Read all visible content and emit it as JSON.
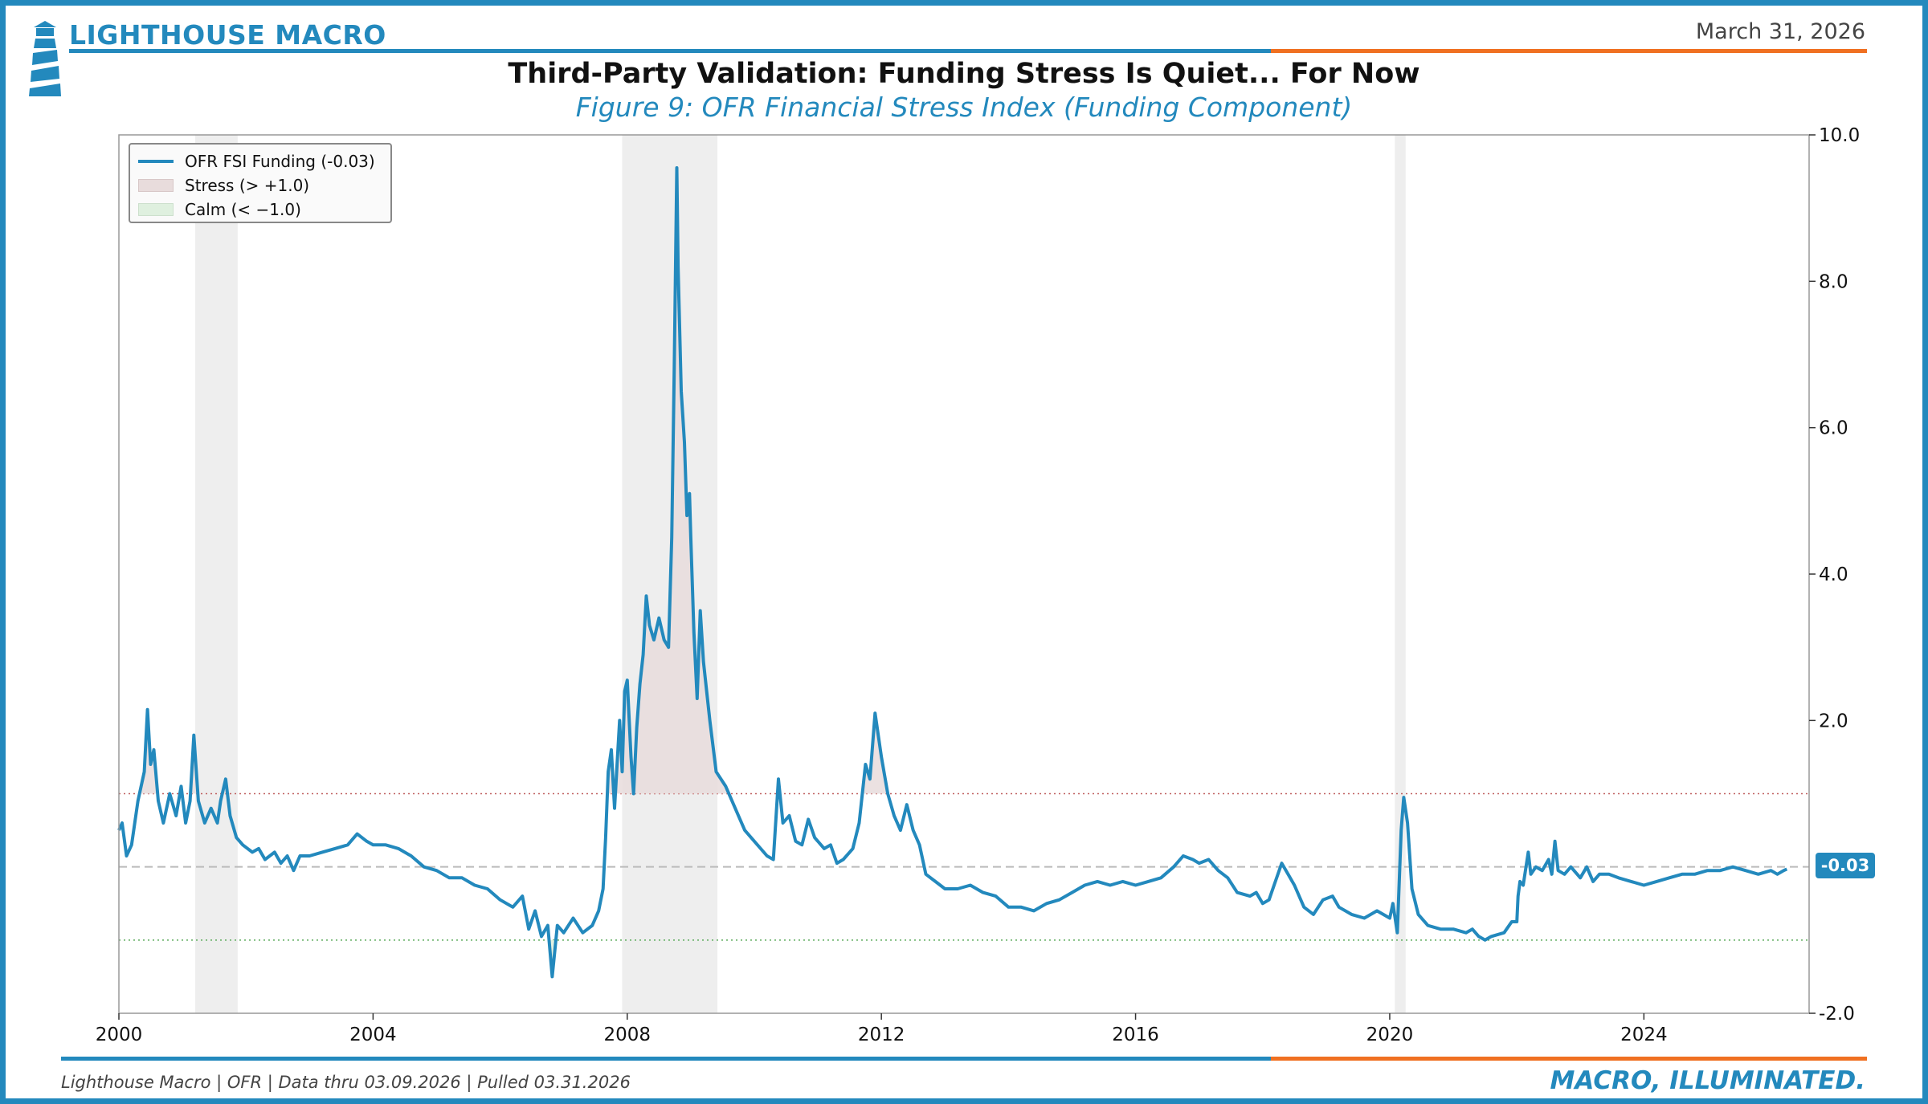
{
  "header": {
    "brand": "LIGHTHOUSE MACRO",
    "date": "March 31, 2026",
    "title": "Third-Party Validation: Funding Stress Is Quiet... For Now",
    "subtitle": "Figure 9: OFR Financial Stress Index (Funding Component)"
  },
  "footer": {
    "source": "Lighthouse Macro | OFR | Data thru 03.09.2026 | Pulled 03.31.2026",
    "tagline": "MACRO, ILLUMINATED."
  },
  "colors": {
    "accent": "#2389bd",
    "orange": "#f07021",
    "stress_fill": "#e8dcdc",
    "calm_fill": "#dff0df",
    "recession": "#eeeeee"
  },
  "chart_data": {
    "type": "line",
    "title": "Third-Party Validation: Funding Stress Is Quiet... For Now",
    "subtitle": "Figure 9: OFR Financial Stress Index (Funding Component)",
    "xlabel": "",
    "ylabel": "",
    "xlim": [
      2000,
      2026.6
    ],
    "ylim": [
      -2.0,
      10.0
    ],
    "x_ticks": [
      2000,
      2004,
      2008,
      2012,
      2016,
      2020,
      2024
    ],
    "x_tick_labels": [
      "2000",
      "2004",
      "2008",
      "2012",
      "2016",
      "2020",
      "2024"
    ],
    "y_ticks": [
      10.0,
      8.0,
      6.0,
      4.0,
      2.0,
      -2.0
    ],
    "y_tick_labels": [
      "10.0",
      "8.0",
      "6.0",
      "4.0",
      "2.0",
      "-2.0"
    ],
    "y_axis_side": "right",
    "legend_position": "top-left",
    "legend": [
      {
        "label": "OFR FSI Funding (-0.03)",
        "kind": "line"
      },
      {
        "label": "Stress (> +1.0)",
        "kind": "stress"
      },
      {
        "label": "Calm (< −1.0)",
        "kind": "calm"
      }
    ],
    "thresholds": {
      "stress": 1.0,
      "zero": 0.0,
      "calm": -1.0
    },
    "recessions": [
      [
        2001.2,
        2001.87
      ],
      [
        2007.92,
        2009.42
      ],
      [
        2020.08,
        2020.25
      ]
    ],
    "last_value": -0.03,
    "last_value_label": "-0.03",
    "series": [
      {
        "name": "OFR FSI Funding",
        "points": [
          [
            2000.0,
            0.5
          ],
          [
            2000.05,
            0.6
          ],
          [
            2000.12,
            0.15
          ],
          [
            2000.2,
            0.3
          ],
          [
            2000.3,
            0.9
          ],
          [
            2000.4,
            1.3
          ],
          [
            2000.45,
            2.15
          ],
          [
            2000.5,
            1.4
          ],
          [
            2000.55,
            1.6
          ],
          [
            2000.62,
            0.9
          ],
          [
            2000.7,
            0.6
          ],
          [
            2000.8,
            1.0
          ],
          [
            2000.9,
            0.7
          ],
          [
            2000.98,
            1.1
          ],
          [
            2001.05,
            0.6
          ],
          [
            2001.12,
            0.9
          ],
          [
            2001.18,
            1.8
          ],
          [
            2001.25,
            0.9
          ],
          [
            2001.35,
            0.6
          ],
          [
            2001.45,
            0.8
          ],
          [
            2001.55,
            0.6
          ],
          [
            2001.6,
            0.9
          ],
          [
            2001.68,
            1.2
          ],
          [
            2001.75,
            0.7
          ],
          [
            2001.85,
            0.4
          ],
          [
            2001.95,
            0.3
          ],
          [
            2002.1,
            0.2
          ],
          [
            2002.2,
            0.25
          ],
          [
            2002.3,
            0.1
          ],
          [
            2002.45,
            0.2
          ],
          [
            2002.55,
            0.05
          ],
          [
            2002.65,
            0.15
          ],
          [
            2002.75,
            -0.05
          ],
          [
            2002.85,
            0.15
          ],
          [
            2003.0,
            0.15
          ],
          [
            2003.2,
            0.2
          ],
          [
            2003.4,
            0.25
          ],
          [
            2003.6,
            0.3
          ],
          [
            2003.75,
            0.45
          ],
          [
            2003.9,
            0.35
          ],
          [
            2004.0,
            0.3
          ],
          [
            2004.2,
            0.3
          ],
          [
            2004.4,
            0.25
          ],
          [
            2004.6,
            0.15
          ],
          [
            2004.8,
            0.0
          ],
          [
            2005.0,
            -0.05
          ],
          [
            2005.2,
            -0.15
          ],
          [
            2005.4,
            -0.15
          ],
          [
            2005.6,
            -0.25
          ],
          [
            2005.8,
            -0.3
          ],
          [
            2006.0,
            -0.45
          ],
          [
            2006.2,
            -0.55
          ],
          [
            2006.35,
            -0.4
          ],
          [
            2006.45,
            -0.85
          ],
          [
            2006.55,
            -0.6
          ],
          [
            2006.65,
            -0.95
          ],
          [
            2006.75,
            -0.8
          ],
          [
            2006.82,
            -1.5
          ],
          [
            2006.9,
            -0.8
          ],
          [
            2007.0,
            -0.9
          ],
          [
            2007.15,
            -0.7
          ],
          [
            2007.3,
            -0.9
          ],
          [
            2007.45,
            -0.8
          ],
          [
            2007.55,
            -0.6
          ],
          [
            2007.62,
            -0.3
          ],
          [
            2007.66,
            0.4
          ],
          [
            2007.7,
            1.3
          ],
          [
            2007.75,
            1.6
          ],
          [
            2007.8,
            0.8
          ],
          [
            2007.88,
            2.0
          ],
          [
            2007.92,
            1.3
          ],
          [
            2007.96,
            2.4
          ],
          [
            2008.0,
            2.55
          ],
          [
            2008.06,
            1.5
          ],
          [
            2008.1,
            1.0
          ],
          [
            2008.15,
            1.9
          ],
          [
            2008.2,
            2.5
          ],
          [
            2008.25,
            2.9
          ],
          [
            2008.3,
            3.7
          ],
          [
            2008.35,
            3.3
          ],
          [
            2008.42,
            3.1
          ],
          [
            2008.5,
            3.4
          ],
          [
            2008.58,
            3.1
          ],
          [
            2008.65,
            3.0
          ],
          [
            2008.7,
            4.5
          ],
          [
            2008.74,
            6.8
          ],
          [
            2008.78,
            9.55
          ],
          [
            2008.8,
            8.2
          ],
          [
            2008.85,
            6.5
          ],
          [
            2008.9,
            5.8
          ],
          [
            2008.94,
            4.8
          ],
          [
            2008.98,
            5.1
          ],
          [
            2009.0,
            4.5
          ],
          [
            2009.05,
            3.2
          ],
          [
            2009.1,
            2.3
          ],
          [
            2009.15,
            3.5
          ],
          [
            2009.2,
            2.8
          ],
          [
            2009.3,
            2.0
          ],
          [
            2009.4,
            1.3
          ],
          [
            2009.55,
            1.1
          ],
          [
            2009.7,
            0.8
          ],
          [
            2009.85,
            0.5
          ],
          [
            2010.0,
            0.35
          ],
          [
            2010.2,
            0.15
          ],
          [
            2010.3,
            0.1
          ],
          [
            2010.38,
            1.2
          ],
          [
            2010.45,
            0.6
          ],
          [
            2010.55,
            0.7
          ],
          [
            2010.65,
            0.35
          ],
          [
            2010.75,
            0.3
          ],
          [
            2010.85,
            0.65
          ],
          [
            2010.95,
            0.4
          ],
          [
            2011.1,
            0.25
          ],
          [
            2011.2,
            0.3
          ],
          [
            2011.3,
            0.05
          ],
          [
            2011.4,
            0.1
          ],
          [
            2011.55,
            0.25
          ],
          [
            2011.65,
            0.6
          ],
          [
            2011.75,
            1.4
          ],
          [
            2011.82,
            1.2
          ],
          [
            2011.9,
            2.1
          ],
          [
            2012.0,
            1.5
          ],
          [
            2012.1,
            1.0
          ],
          [
            2012.2,
            0.7
          ],
          [
            2012.3,
            0.5
          ],
          [
            2012.4,
            0.85
          ],
          [
            2012.5,
            0.5
          ],
          [
            2012.6,
            0.3
          ],
          [
            2012.7,
            -0.1
          ],
          [
            2012.85,
            -0.2
          ],
          [
            2013.0,
            -0.3
          ],
          [
            2013.2,
            -0.3
          ],
          [
            2013.4,
            -0.25
          ],
          [
            2013.6,
            -0.35
          ],
          [
            2013.8,
            -0.4
          ],
          [
            2014.0,
            -0.55
          ],
          [
            2014.2,
            -0.55
          ],
          [
            2014.4,
            -0.6
          ],
          [
            2014.6,
            -0.5
          ],
          [
            2014.8,
            -0.45
          ],
          [
            2015.0,
            -0.35
          ],
          [
            2015.2,
            -0.25
          ],
          [
            2015.4,
            -0.2
          ],
          [
            2015.6,
            -0.25
          ],
          [
            2015.8,
            -0.2
          ],
          [
            2016.0,
            -0.25
          ],
          [
            2016.2,
            -0.2
          ],
          [
            2016.4,
            -0.15
          ],
          [
            2016.6,
            0.0
          ],
          [
            2016.75,
            0.15
          ],
          [
            2016.9,
            0.1
          ],
          [
            2017.0,
            0.05
          ],
          [
            2017.15,
            0.1
          ],
          [
            2017.3,
            -0.05
          ],
          [
            2017.45,
            -0.15
          ],
          [
            2017.6,
            -0.35
          ],
          [
            2017.8,
            -0.4
          ],
          [
            2017.9,
            -0.35
          ],
          [
            2018.0,
            -0.5
          ],
          [
            2018.1,
            -0.45
          ],
          [
            2018.2,
            -0.2
          ],
          [
            2018.3,
            0.05
          ],
          [
            2018.4,
            -0.1
          ],
          [
            2018.5,
            -0.25
          ],
          [
            2018.65,
            -0.55
          ],
          [
            2018.8,
            -0.65
          ],
          [
            2018.95,
            -0.45
          ],
          [
            2019.1,
            -0.4
          ],
          [
            2019.2,
            -0.55
          ],
          [
            2019.4,
            -0.65
          ],
          [
            2019.6,
            -0.7
          ],
          [
            2019.8,
            -0.6
          ],
          [
            2020.0,
            -0.7
          ],
          [
            2020.05,
            -0.5
          ],
          [
            2020.12,
            -0.9
          ],
          [
            2020.18,
            0.5
          ],
          [
            2020.22,
            0.95
          ],
          [
            2020.28,
            0.6
          ],
          [
            2020.35,
            -0.3
          ],
          [
            2020.45,
            -0.65
          ],
          [
            2020.6,
            -0.8
          ],
          [
            2020.8,
            -0.85
          ],
          [
            2021.0,
            -0.85
          ],
          [
            2021.2,
            -0.9
          ],
          [
            2021.3,
            -0.85
          ],
          [
            2021.4,
            -0.95
          ],
          [
            2021.5,
            -1.0
          ],
          [
            2021.6,
            -0.95
          ],
          [
            2021.8,
            -0.9
          ],
          [
            2021.92,
            -0.75
          ],
          [
            2022.0,
            -0.75
          ],
          [
            2022.02,
            -0.4
          ],
          [
            2022.05,
            -0.2
          ],
          [
            2022.1,
            -0.25
          ],
          [
            2022.18,
            0.2
          ],
          [
            2022.22,
            -0.1
          ],
          [
            2022.3,
            0.0
          ],
          [
            2022.4,
            -0.05
          ],
          [
            2022.5,
            0.1
          ],
          [
            2022.55,
            -0.1
          ],
          [
            2022.6,
            0.35
          ],
          [
            2022.65,
            -0.05
          ],
          [
            2022.75,
            -0.1
          ],
          [
            2022.85,
            0.0
          ],
          [
            2023.0,
            -0.15
          ],
          [
            2023.1,
            0.0
          ],
          [
            2023.2,
            -0.2
          ],
          [
            2023.3,
            -0.1
          ],
          [
            2023.45,
            -0.1
          ],
          [
            2023.6,
            -0.15
          ],
          [
            2023.8,
            -0.2
          ],
          [
            2024.0,
            -0.25
          ],
          [
            2024.2,
            -0.2
          ],
          [
            2024.4,
            -0.15
          ],
          [
            2024.6,
            -0.1
          ],
          [
            2024.8,
            -0.1
          ],
          [
            2025.0,
            -0.05
          ],
          [
            2025.2,
            -0.05
          ],
          [
            2025.4,
            0.0
          ],
          [
            2025.6,
            -0.05
          ],
          [
            2025.8,
            -0.1
          ],
          [
            2026.0,
            -0.05
          ],
          [
            2026.1,
            -0.1
          ],
          [
            2026.2,
            -0.05
          ],
          [
            2026.25,
            -0.03
          ]
        ]
      }
    ]
  }
}
